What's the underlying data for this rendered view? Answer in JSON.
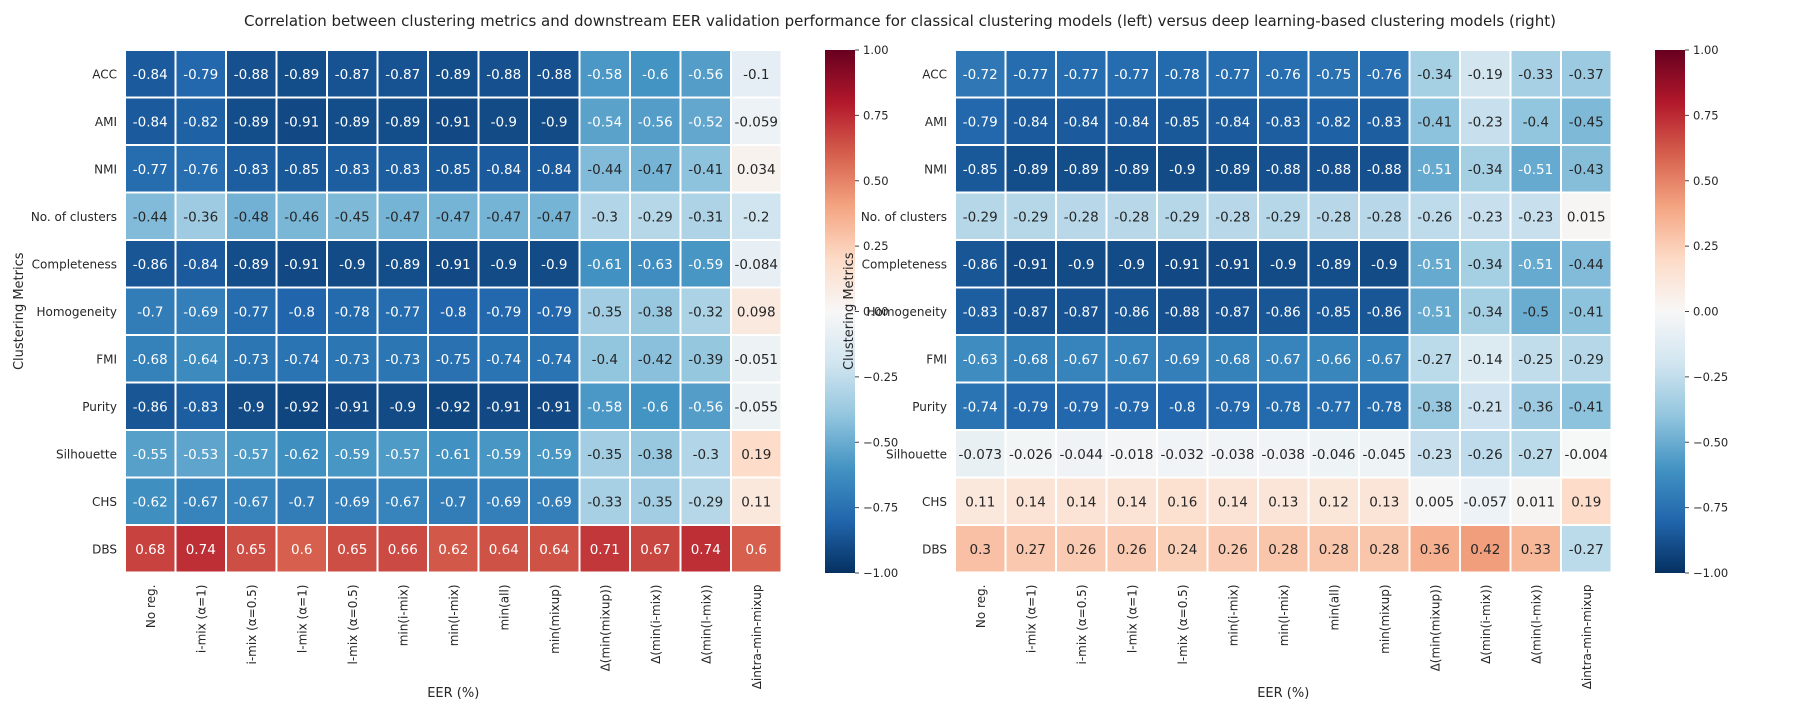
{
  "title": "Correlation between clustering metrics and downstream EER validation performance for classical clustering models (left) versus deep learning-based clustering models (right)",
  "colorbar": {
    "ticks": [
      "1.00",
      "0.75",
      "0.50",
      "0.25",
      "0.00",
      "−0.25",
      "−0.50",
      "−0.75",
      "−1.00"
    ],
    "colormap": "RdBu_r",
    "stops": [
      "#053061",
      "#2166ac",
      "#4393c3",
      "#92c5de",
      "#d1e5f0",
      "#f7f7f7",
      "#fddbc7",
      "#f4a582",
      "#d6604d",
      "#b2182b",
      "#67001f"
    ]
  },
  "chart_data": [
    {
      "type": "heatmap",
      "xlabel": "EER (%)",
      "ylabel": "Clustering Metrics",
      "vlim": [
        -1,
        1
      ],
      "x": [
        "No reg.",
        "i-mix (α=1)",
        "i-mix (α=0.5)",
        "l-mix (α=1)",
        "l-mix (α=0.5)",
        "min(i-mix)",
        "min(l-mix)",
        "min(all)",
        "min(mixup)",
        "Δ(min(mixup))",
        "Δ(min(i-mix))",
        "Δ(min(l-mix))",
        "Δintra-min-mixup"
      ],
      "y": [
        "ACC",
        "AMI",
        "NMI",
        "No. of clusters",
        "Completeness",
        "Homogeneity",
        "FMI",
        "Purity",
        "Silhouette",
        "CHS",
        "DBS"
      ],
      "labels": [
        [
          "-0.84",
          "-0.79",
          "-0.88",
          "-0.89",
          "-0.87",
          "-0.87",
          "-0.89",
          "-0.88",
          "-0.88",
          "-0.58",
          "-0.6",
          "-0.56",
          "-0.1"
        ],
        [
          "-0.84",
          "-0.82",
          "-0.89",
          "-0.91",
          "-0.89",
          "-0.89",
          "-0.91",
          "-0.9",
          "-0.9",
          "-0.54",
          "-0.56",
          "-0.52",
          "-0.059"
        ],
        [
          "-0.77",
          "-0.76",
          "-0.83",
          "-0.85",
          "-0.83",
          "-0.83",
          "-0.85",
          "-0.84",
          "-0.84",
          "-0.44",
          "-0.47",
          "-0.41",
          "0.034"
        ],
        [
          "-0.44",
          "-0.36",
          "-0.48",
          "-0.46",
          "-0.45",
          "-0.47",
          "-0.47",
          "-0.47",
          "-0.47",
          "-0.3",
          "-0.29",
          "-0.31",
          "-0.2"
        ],
        [
          "-0.86",
          "-0.84",
          "-0.89",
          "-0.91",
          "-0.9",
          "-0.89",
          "-0.91",
          "-0.9",
          "-0.9",
          "-0.61",
          "-0.63",
          "-0.59",
          "-0.084"
        ],
        [
          "-0.7",
          "-0.69",
          "-0.77",
          "-0.8",
          "-0.78",
          "-0.77",
          "-0.8",
          "-0.79",
          "-0.79",
          "-0.35",
          "-0.38",
          "-0.32",
          "0.098"
        ],
        [
          "-0.68",
          "-0.64",
          "-0.73",
          "-0.74",
          "-0.73",
          "-0.73",
          "-0.75",
          "-0.74",
          "-0.74",
          "-0.4",
          "-0.42",
          "-0.39",
          "-0.051"
        ],
        [
          "-0.86",
          "-0.83",
          "-0.9",
          "-0.92",
          "-0.91",
          "-0.9",
          "-0.92",
          "-0.91",
          "-0.91",
          "-0.58",
          "-0.6",
          "-0.56",
          "-0.055"
        ],
        [
          "-0.55",
          "-0.53",
          "-0.57",
          "-0.62",
          "-0.59",
          "-0.57",
          "-0.61",
          "-0.59",
          "-0.59",
          "-0.35",
          "-0.38",
          "-0.3",
          "0.19"
        ],
        [
          "-0.62",
          "-0.67",
          "-0.67",
          "-0.7",
          "-0.69",
          "-0.67",
          "-0.7",
          "-0.69",
          "-0.69",
          "-0.33",
          "-0.35",
          "-0.29",
          "0.11"
        ],
        [
          "0.68",
          "0.74",
          "0.65",
          "0.6",
          "0.65",
          "0.66",
          "0.62",
          "0.64",
          "0.64",
          "0.71",
          "0.67",
          "0.74",
          "0.6"
        ]
      ]
    },
    {
      "type": "heatmap",
      "xlabel": "EER (%)",
      "ylabel": "Clustering Metrics",
      "vlim": [
        -1,
        1
      ],
      "x": [
        "No reg.",
        "i-mix (α=1)",
        "i-mix (α=0.5)",
        "l-mix (α=1)",
        "l-mix (α=0.5)",
        "min(i-mix)",
        "min(l-mix)",
        "min(all)",
        "min(mixup)",
        "Δ(min(mixup))",
        "Δ(min(i-mix))",
        "Δ(min(l-mix))",
        "Δintra-min-mixup"
      ],
      "y": [
        "ACC",
        "AMI",
        "NMI",
        "No. of clusters",
        "Completeness",
        "Homogeneity",
        "FMI",
        "Purity",
        "Silhouette",
        "CHS",
        "DBS"
      ],
      "labels": [
        [
          "-0.72",
          "-0.77",
          "-0.77",
          "-0.77",
          "-0.78",
          "-0.77",
          "-0.76",
          "-0.75",
          "-0.76",
          "-0.34",
          "-0.19",
          "-0.33",
          "-0.37"
        ],
        [
          "-0.79",
          "-0.84",
          "-0.84",
          "-0.84",
          "-0.85",
          "-0.84",
          "-0.83",
          "-0.82",
          "-0.83",
          "-0.41",
          "-0.23",
          "-0.4",
          "-0.45"
        ],
        [
          "-0.85",
          "-0.89",
          "-0.89",
          "-0.89",
          "-0.9",
          "-0.89",
          "-0.88",
          "-0.88",
          "-0.88",
          "-0.51",
          "-0.34",
          "-0.51",
          "-0.43"
        ],
        [
          "-0.29",
          "-0.29",
          "-0.28",
          "-0.28",
          "-0.29",
          "-0.28",
          "-0.29",
          "-0.28",
          "-0.28",
          "-0.26",
          "-0.23",
          "-0.23",
          "0.015"
        ],
        [
          "-0.86",
          "-0.91",
          "-0.9",
          "-0.9",
          "-0.91",
          "-0.91",
          "-0.9",
          "-0.89",
          "-0.9",
          "-0.51",
          "-0.34",
          "-0.51",
          "-0.44"
        ],
        [
          "-0.83",
          "-0.87",
          "-0.87",
          "-0.86",
          "-0.88",
          "-0.87",
          "-0.86",
          "-0.85",
          "-0.86",
          "-0.51",
          "-0.34",
          "-0.5",
          "-0.41"
        ],
        [
          "-0.63",
          "-0.68",
          "-0.67",
          "-0.67",
          "-0.69",
          "-0.68",
          "-0.67",
          "-0.66",
          "-0.67",
          "-0.27",
          "-0.14",
          "-0.25",
          "-0.29"
        ],
        [
          "-0.74",
          "-0.79",
          "-0.79",
          "-0.79",
          "-0.8",
          "-0.79",
          "-0.78",
          "-0.77",
          "-0.78",
          "-0.38",
          "-0.21",
          "-0.36",
          "-0.41"
        ],
        [
          "-0.073",
          "-0.026",
          "-0.044",
          "-0.018",
          "-0.032",
          "-0.038",
          "-0.038",
          "-0.046",
          "-0.045",
          "-0.23",
          "-0.26",
          "-0.27",
          "-0.004"
        ],
        [
          "0.11",
          "0.14",
          "0.14",
          "0.14",
          "0.16",
          "0.14",
          "0.13",
          "0.12",
          "0.13",
          "0.005",
          "-0.057",
          "0.011",
          "0.19"
        ],
        [
          "0.3",
          "0.27",
          "0.26",
          "0.26",
          "0.24",
          "0.26",
          "0.28",
          "0.28",
          "0.28",
          "0.36",
          "0.42",
          "0.33",
          "-0.27"
        ]
      ]
    }
  ]
}
